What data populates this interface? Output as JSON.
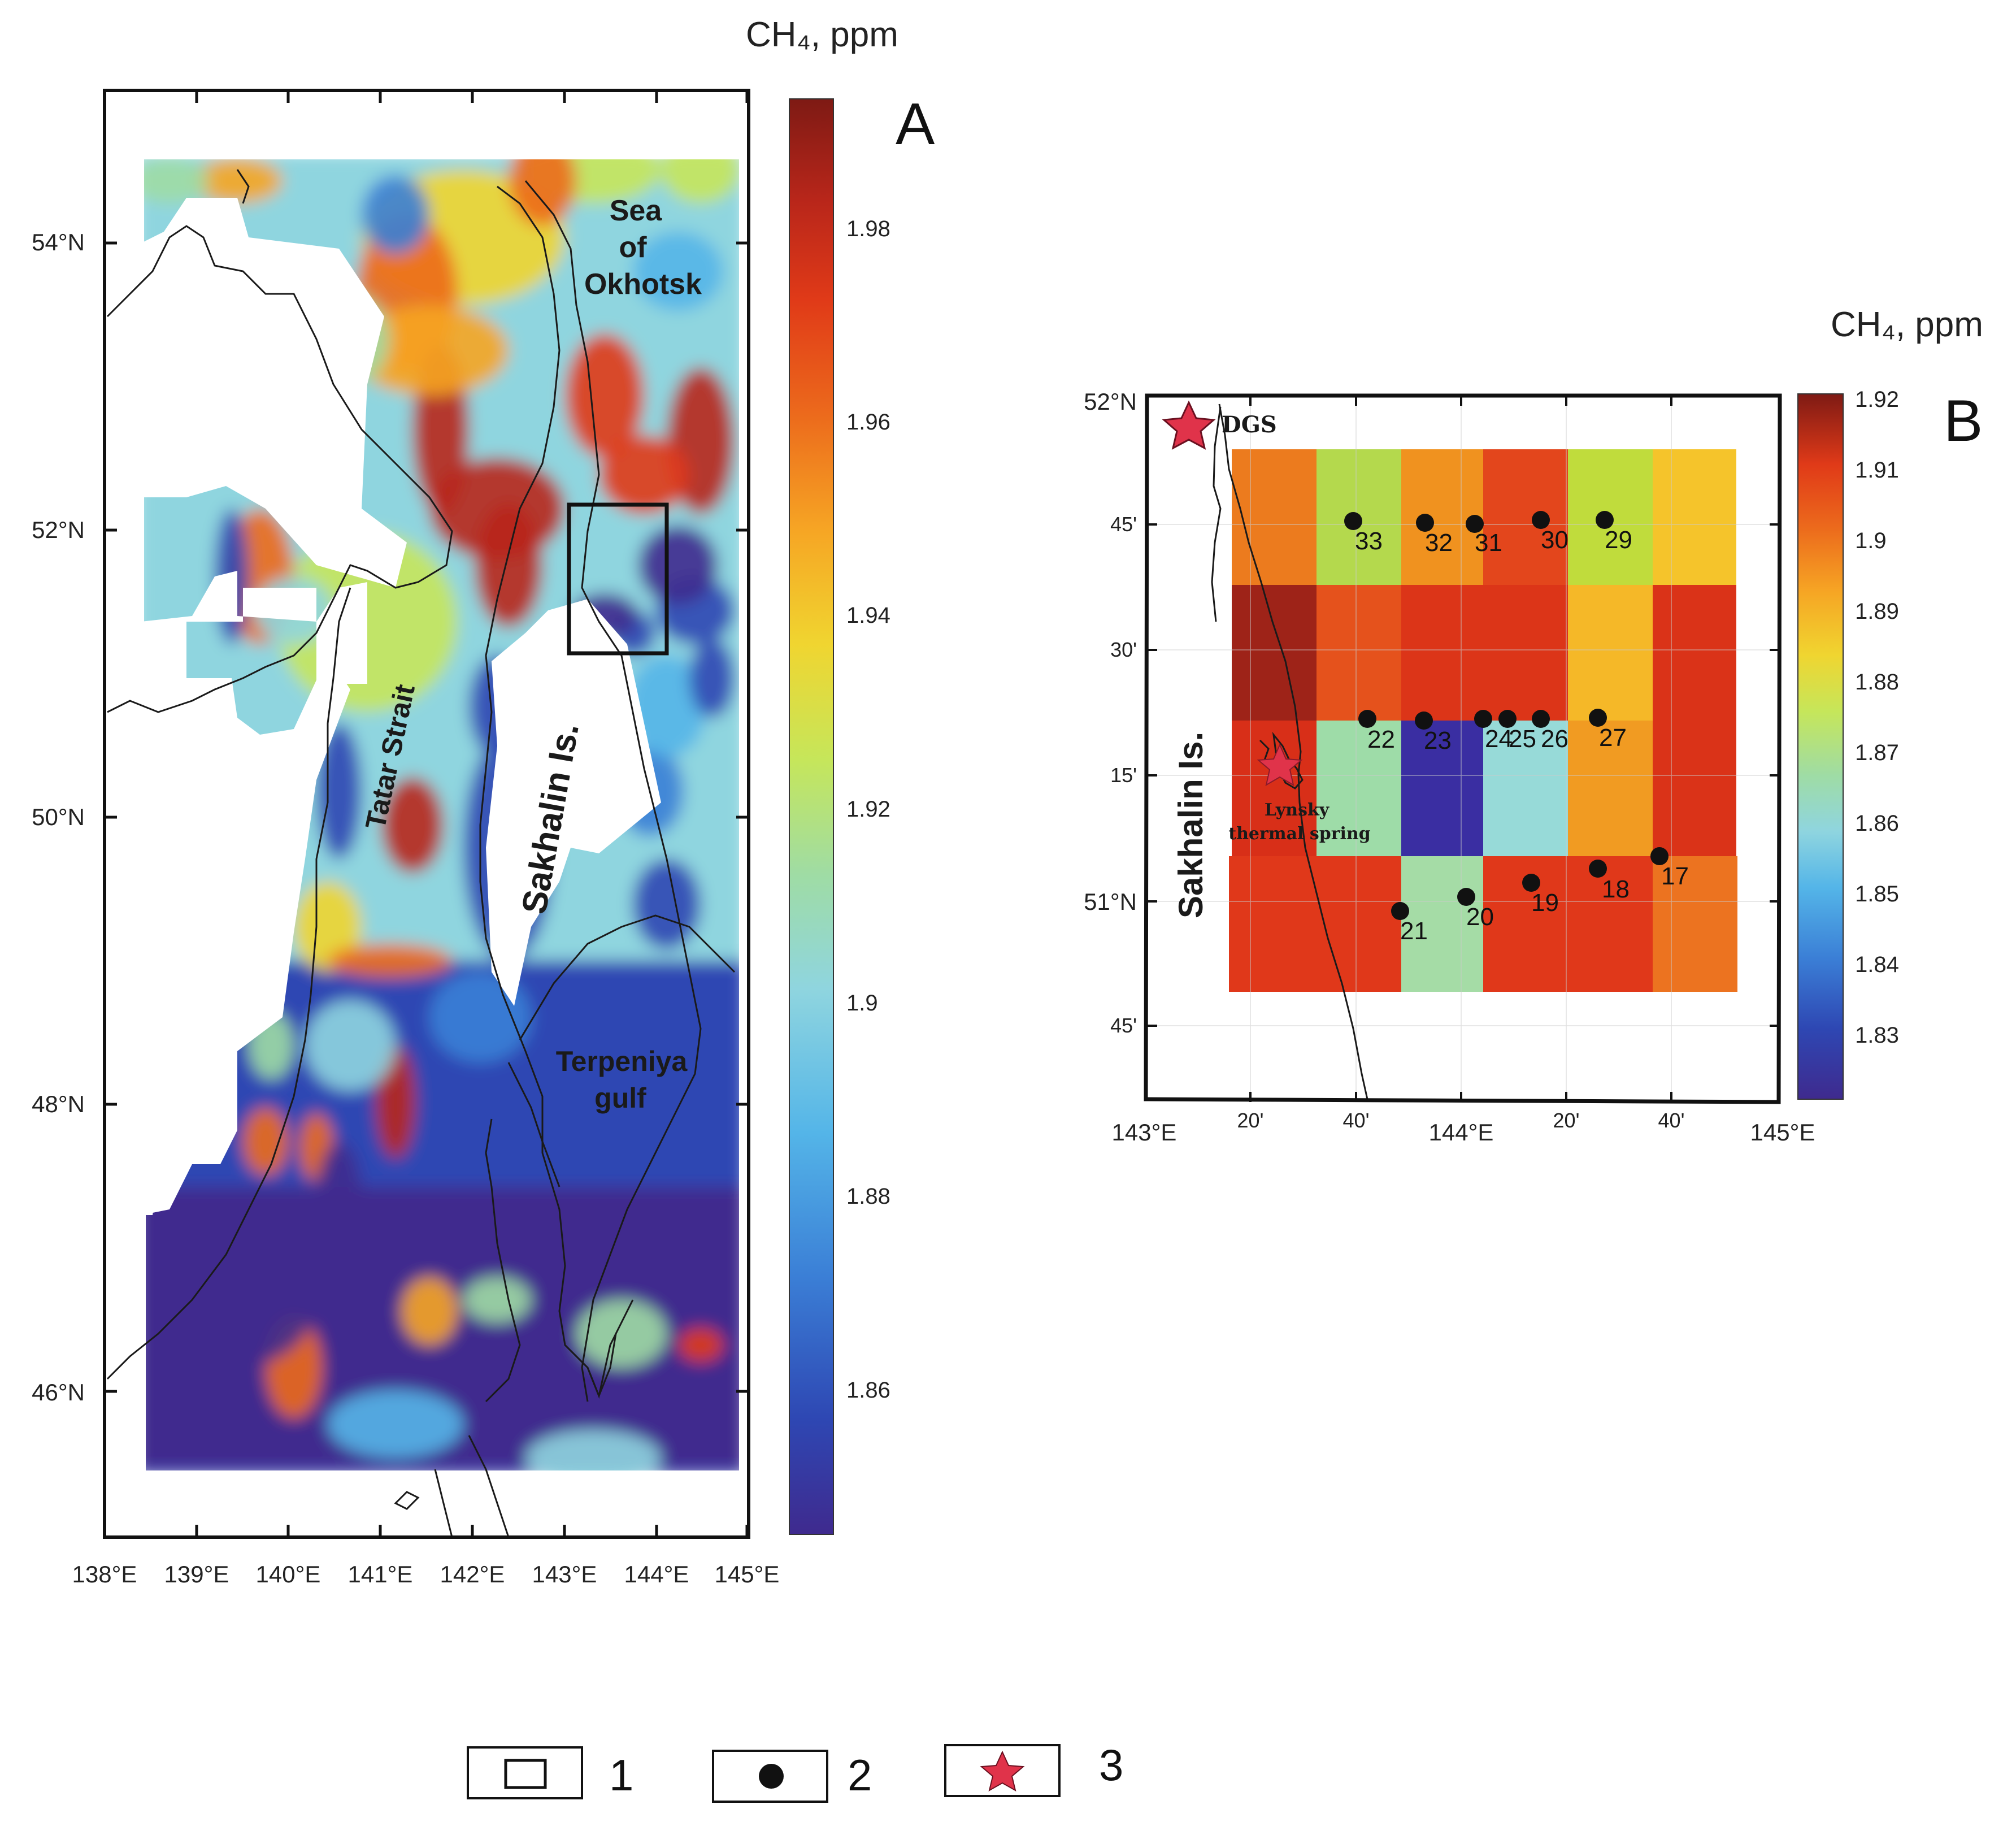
{
  "colors": {
    "scale": [
      "#3f2a8e",
      "#2e47b3",
      "#3b7fd6",
      "#54b5e8",
      "#8fd5df",
      "#9fdca4",
      "#c6e65a",
      "#f0d530",
      "#f6a524",
      "#ec6a1c",
      "#e03a18",
      "#b8261a",
      "#7e1a14"
    ],
    "station": "#111111",
    "star": "#e0334a",
    "frame": "#111111",
    "coast": "#1a1a1a"
  },
  "panel_a": {
    "letter": "A",
    "unit": "CH₄, ppm",
    "lon_ticks": [
      "138°E",
      "139°E",
      "140°E",
      "141°E",
      "142°E",
      "143°E",
      "144°E",
      "145°E"
    ],
    "lat_ticks": [
      "54°N",
      "52°N",
      "50°N",
      "48°N",
      "46°N"
    ],
    "colorbar_ticks": [
      "1.98",
      "1.96",
      "1.94",
      "1.92",
      "1.9",
      "1.88",
      "1.86"
    ],
    "labels": {
      "sea_line1": "Sea",
      "sea_line2": "of",
      "sea_line3": "Okhotsk",
      "strait": "Tatar Strait",
      "island": "Sakhalin Is.",
      "gulf_line1": "Terpeniya",
      "gulf_line2": "gulf"
    }
  },
  "panel_b": {
    "letter": "B",
    "unit": "CH₄, ppm",
    "lon_ticks": [
      "143°E",
      "20'",
      "40'",
      "144°E",
      "20'",
      "40'",
      "145°E"
    ],
    "lat_ticks": [
      "52°N",
      "45'",
      "30'",
      "15'",
      "51°N",
      "45'"
    ],
    "colorbar_ticks": [
      "1.92",
      "1.91",
      "1.9",
      "1.89",
      "1.88",
      "1.87",
      "1.86",
      "1.85",
      "1.84",
      "1.83"
    ],
    "labels": {
      "island": "Sakhalin Is.",
      "dgs": "DGS",
      "spring_line1": "Lynsky",
      "spring_line2": "thermal spring"
    },
    "stations": [
      "33",
      "32",
      "31",
      "30",
      "29",
      "22",
      "23",
      "24",
      "25",
      "26",
      "27",
      "18",
      "17",
      "19",
      "20",
      "21"
    ]
  },
  "legend": {
    "items": [
      "1",
      "2",
      "3"
    ]
  }
}
